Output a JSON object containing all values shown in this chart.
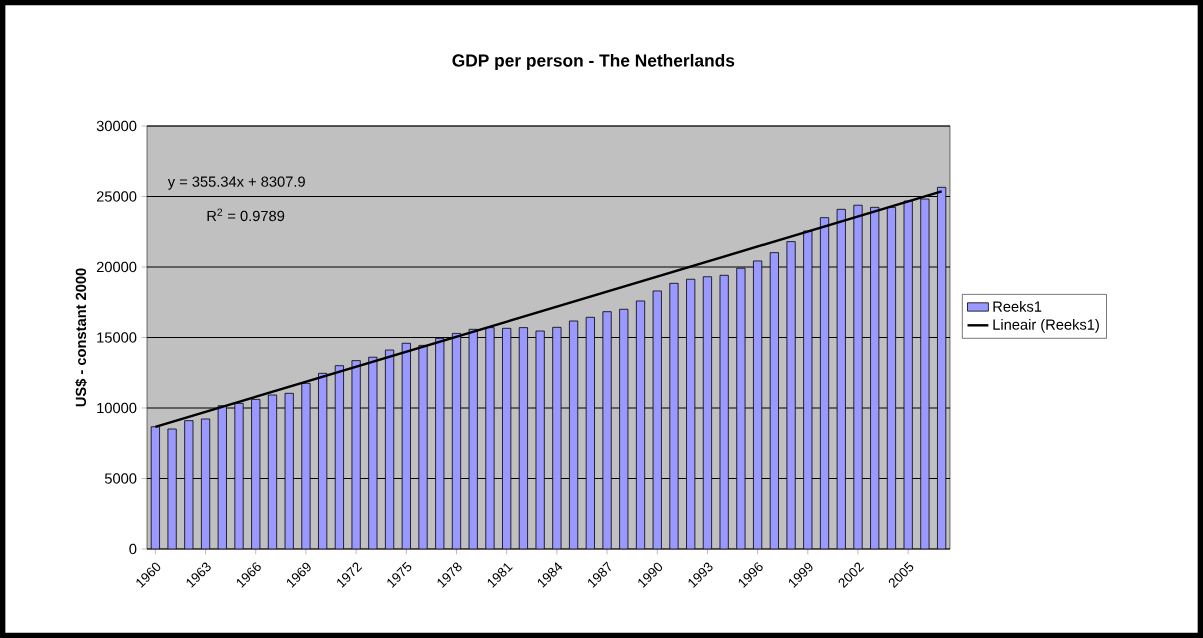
{
  "chart_data": {
    "type": "bar",
    "title": "GDP per person - The Netherlands",
    "ylabel": "US$ - constant 2000",
    "x": [
      1960,
      1961,
      1962,
      1963,
      1964,
      1965,
      1966,
      1967,
      1968,
      1969,
      1970,
      1971,
      1972,
      1973,
      1974,
      1975,
      1976,
      1977,
      1978,
      1979,
      1980,
      1981,
      1982,
      1983,
      1984,
      1985,
      1986,
      1987,
      1988,
      1989,
      1990,
      1991,
      1992,
      1993,
      1994,
      1995,
      1996,
      1997,
      1998,
      1999,
      2000,
      2001,
      2002,
      2003,
      2004,
      2005,
      2006,
      2007
    ],
    "series": [
      {
        "name": "Reeks1",
        "color": "#9999ff",
        "values": [
          8670,
          8510,
          9100,
          9220,
          10160,
          10330,
          10610,
          10920,
          11040,
          11750,
          12460,
          13000,
          13360,
          13600,
          14110,
          14590,
          14440,
          14940,
          15290,
          15580,
          15700,
          15650,
          15700,
          15460,
          15720,
          16170,
          16430,
          16830,
          17000,
          17590,
          18300,
          18840,
          19130,
          19310,
          19410,
          19910,
          20430,
          21020,
          21800,
          22550,
          23500,
          24090,
          24380,
          24230,
          24230,
          24680,
          24820,
          25650
        ]
      },
      {
        "name": "Lineair (Reeks1)",
        "type": "line",
        "color": "#000000",
        "x": [
          1960,
          2007
        ],
        "values": [
          8660,
          25360
        ]
      }
    ],
    "xlim": [
      1959.5,
      2007.5
    ],
    "xticks": [
      1960,
      1963,
      1966,
      1969,
      1972,
      1975,
      1978,
      1981,
      1984,
      1987,
      1990,
      1993,
      1996,
      1999,
      2002,
      2005
    ],
    "ylim": [
      0,
      30000
    ],
    "yticks": [
      0,
      5000,
      10000,
      15000,
      20000,
      25000,
      30000
    ],
    "grid": "y",
    "legend": "right",
    "annotations": [
      "y = 355.34x + 8307.9",
      "R$^{2}$ = 0.9789"
    ]
  }
}
